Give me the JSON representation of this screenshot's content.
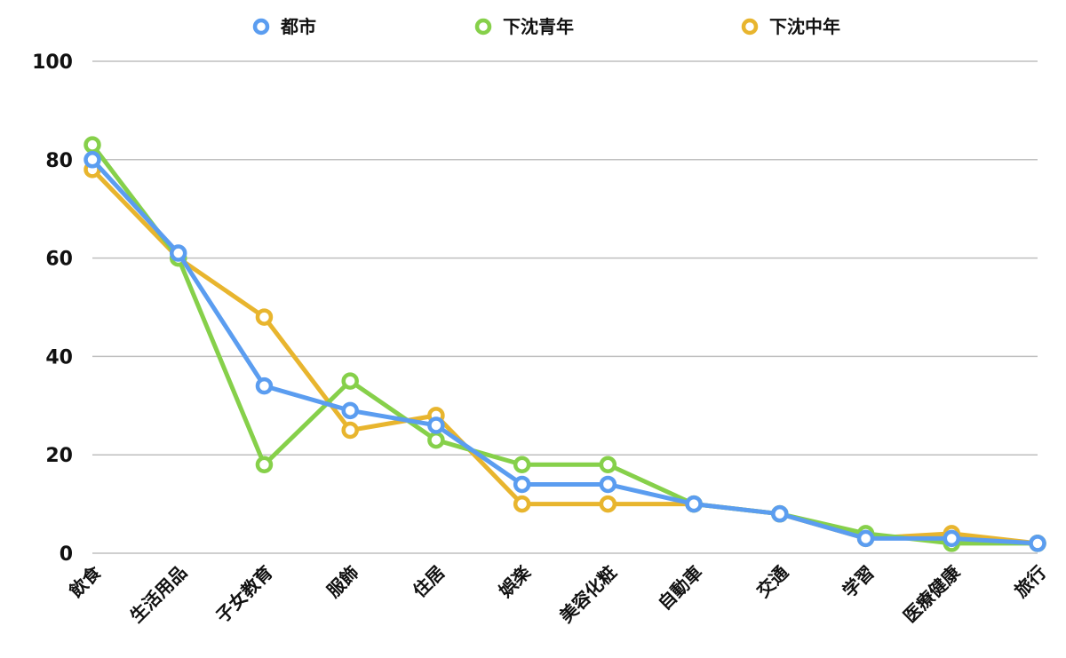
{
  "chart_data": {
    "type": "line",
    "categories": [
      "飲食",
      "生活用品",
      "子女教育",
      "服飾",
      "住居",
      "娯楽",
      "美容化粧",
      "自動車",
      "交通",
      "学習",
      "医療健康",
      "旅行"
    ],
    "series": [
      {
        "name": "都市",
        "color": "#5b9df0",
        "values": [
          80,
          61,
          34,
          29,
          26,
          14,
          14,
          10,
          8,
          3,
          3,
          2
        ]
      },
      {
        "name": "下沈青年",
        "color": "#86d04a",
        "values": [
          83,
          60,
          18,
          35,
          23,
          18,
          18,
          10,
          8,
          4,
          2,
          2
        ]
      },
      {
        "name": "下沈中年",
        "color": "#e8b52e",
        "values": [
          78,
          60,
          48,
          25,
          28,
          10,
          10,
          10,
          8,
          3,
          4,
          2
        ]
      }
    ],
    "draw_order": [
      2,
      1,
      0
    ],
    "ylim": [
      0,
      100
    ],
    "yticks": [
      0,
      20,
      40,
      60,
      80,
      100
    ],
    "grid": true,
    "legend_position": "top-center",
    "title": "",
    "xlabel": "",
    "ylabel": ""
  }
}
